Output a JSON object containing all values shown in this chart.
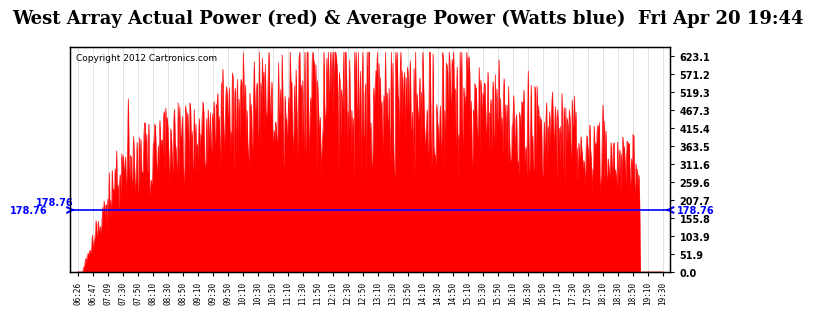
{
  "title": "West Array Actual Power (red) & Average Power (Watts blue)  Fri Apr 20 19:44",
  "copyright": "Copyright 2012 Cartronics.com",
  "average_line_value": 178.76,
  "y_tick_values": [
    0.0,
    51.9,
    103.9,
    155.8,
    207.7,
    259.6,
    311.6,
    363.5,
    415.4,
    467.3,
    519.3,
    571.2,
    623.1
  ],
  "ylim": [
    0,
    650
  ],
  "avg_label": "178.76",
  "fill_color": "red",
  "avg_line_color": "blue",
  "background_color": "#ffffff",
  "grid_color": "#cccccc",
  "title_fontsize": 13,
  "x_labels": [
    "06:26",
    "06:47",
    "07:09",
    "07:30",
    "07:50",
    "08:10",
    "08:30",
    "08:50",
    "09:10",
    "09:30",
    "09:50",
    "10:10",
    "10:30",
    "10:50",
    "11:10",
    "11:30",
    "11:50",
    "12:10",
    "12:30",
    "12:50",
    "13:10",
    "13:30",
    "13:50",
    "14:10",
    "14:30",
    "14:50",
    "15:10",
    "15:30",
    "15:50",
    "16:10",
    "16:30",
    "16:50",
    "17:10",
    "17:30",
    "17:50",
    "18:10",
    "18:30",
    "18:50",
    "19:10",
    "19:30"
  ]
}
